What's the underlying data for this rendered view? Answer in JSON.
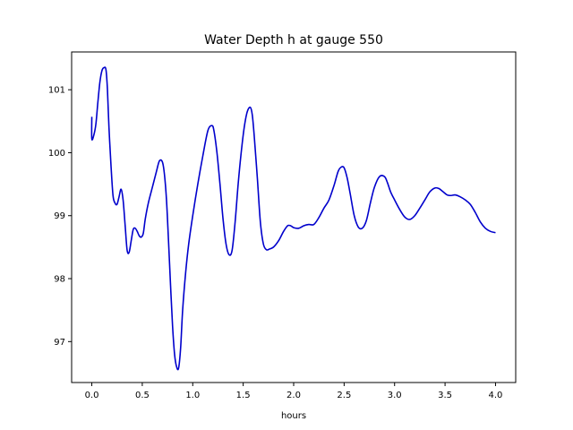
{
  "chart_data": {
    "type": "line",
    "title": "Water Depth h at gauge 550",
    "xlabel": "hours",
    "ylabel": "",
    "xlim": [
      -0.2,
      4.2
    ],
    "ylim": [
      96.35,
      101.6
    ],
    "xticks": [
      {
        "value": 0.0,
        "label": "0.0"
      },
      {
        "value": 0.5,
        "label": "0.5"
      },
      {
        "value": 1.0,
        "label": "1.0"
      },
      {
        "value": 1.5,
        "label": "1.5"
      },
      {
        "value": 2.0,
        "label": "2.0"
      },
      {
        "value": 2.5,
        "label": "2.5"
      },
      {
        "value": 3.0,
        "label": "3.0"
      },
      {
        "value": 3.5,
        "label": "3.5"
      },
      {
        "value": 4.0,
        "label": "4.0"
      }
    ],
    "yticks": [
      {
        "value": 97,
        "label": "97"
      },
      {
        "value": 98,
        "label": "98"
      },
      {
        "value": 99,
        "label": "99"
      },
      {
        "value": 100,
        "label": "100"
      },
      {
        "value": 101,
        "label": "101"
      }
    ],
    "grid": false,
    "legend": "none",
    "series": [
      {
        "color": "#0000cc",
        "x": [
          0.0,
          0.0,
          0.02,
          0.04,
          0.06,
          0.08,
          0.1,
          0.12,
          0.14,
          0.155,
          0.17,
          0.19,
          0.21,
          0.23,
          0.25,
          0.27,
          0.29,
          0.31,
          0.33,
          0.35,
          0.37,
          0.39,
          0.41,
          0.43,
          0.45,
          0.47,
          0.49,
          0.51,
          0.53,
          0.56,
          0.6,
          0.64,
          0.67,
          0.7,
          0.72,
          0.74,
          0.76,
          0.78,
          0.8,
          0.82,
          0.84,
          0.86,
          0.88,
          0.9,
          0.93,
          0.96,
          1.0,
          1.05,
          1.1,
          1.15,
          1.19,
          1.21,
          1.24,
          1.27,
          1.3,
          1.33,
          1.36,
          1.39,
          1.42,
          1.45,
          1.48,
          1.51,
          1.54,
          1.57,
          1.59,
          1.61,
          1.64,
          1.67,
          1.7,
          1.73,
          1.76,
          1.8,
          1.85,
          1.9,
          1.94,
          1.97,
          2.0,
          2.05,
          2.1,
          2.15,
          2.2,
          2.25,
          2.3,
          2.35,
          2.4,
          2.44,
          2.47,
          2.5,
          2.53,
          2.56,
          2.6,
          2.64,
          2.68,
          2.72,
          2.76,
          2.8,
          2.85,
          2.9,
          2.93,
          2.96,
          3.0,
          3.05,
          3.1,
          3.15,
          3.2,
          3.25,
          3.3,
          3.35,
          3.4,
          3.44,
          3.48,
          3.52,
          3.56,
          3.6,
          3.65,
          3.7,
          3.75,
          3.8,
          3.85,
          3.9,
          3.95,
          4.0
        ],
        "y": [
          100.57,
          100.22,
          100.28,
          100.45,
          100.8,
          101.12,
          101.3,
          101.35,
          101.32,
          101.0,
          100.4,
          99.8,
          99.32,
          99.2,
          99.18,
          99.3,
          99.42,
          99.25,
          98.85,
          98.45,
          98.42,
          98.6,
          98.78,
          98.8,
          98.75,
          98.68,
          98.66,
          98.72,
          98.95,
          99.2,
          99.45,
          99.7,
          99.87,
          99.85,
          99.65,
          99.25,
          98.6,
          97.9,
          97.25,
          96.8,
          96.6,
          96.58,
          96.9,
          97.5,
          98.1,
          98.55,
          99.0,
          99.5,
          99.95,
          100.35,
          100.43,
          100.35,
          100.0,
          99.5,
          98.95,
          98.55,
          98.38,
          98.45,
          98.9,
          99.5,
          100.0,
          100.4,
          100.65,
          100.72,
          100.6,
          100.25,
          99.6,
          98.9,
          98.55,
          98.46,
          98.47,
          98.5,
          98.6,
          98.75,
          98.84,
          98.84,
          98.81,
          98.8,
          98.84,
          98.86,
          98.86,
          98.97,
          99.12,
          99.25,
          99.48,
          99.7,
          99.77,
          99.76,
          99.6,
          99.35,
          99.0,
          98.82,
          98.8,
          98.92,
          99.2,
          99.45,
          99.62,
          99.62,
          99.52,
          99.38,
          99.25,
          99.1,
          98.98,
          98.94,
          99.0,
          99.12,
          99.25,
          99.38,
          99.44,
          99.43,
          99.38,
          99.33,
          99.32,
          99.33,
          99.3,
          99.25,
          99.18,
          99.05,
          98.9,
          98.8,
          98.75,
          98.73
        ]
      }
    ]
  }
}
